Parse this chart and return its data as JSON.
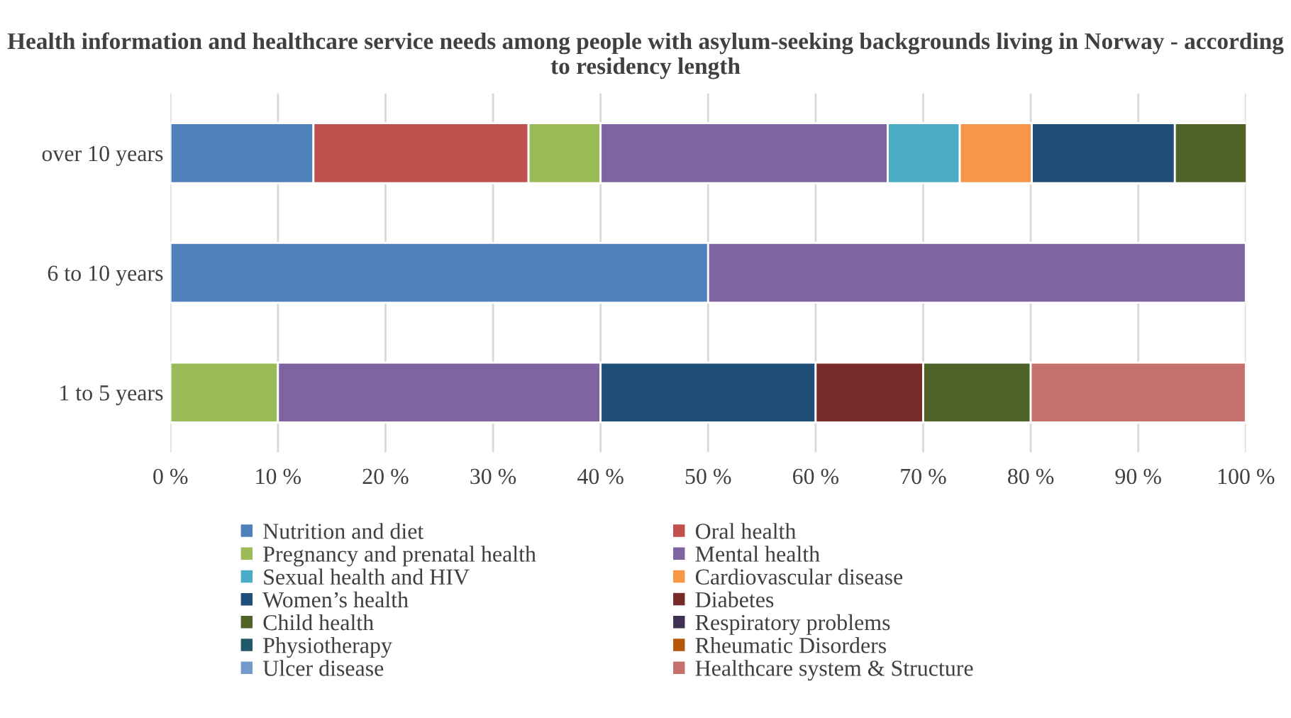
{
  "chart_data": {
    "type": "bar",
    "orientation": "horizontal",
    "stacked": true,
    "title": "Health information and healthcare service needs among people with asylum-seeking backgrounds living in Norway - according to residency length",
    "categories": [
      "over 10 years",
      "6 to 10 years",
      "1 to 5 years"
    ],
    "series": [
      {
        "name": "Nutrition and diet",
        "color": "#4f81bd",
        "values": [
          13.3,
          50,
          null
        ]
      },
      {
        "name": "Oral health",
        "color": "#c0504d",
        "values": [
          20,
          null,
          null
        ]
      },
      {
        "name": "Pregnancy and prenatal health",
        "color": "#9bbb59",
        "values": [
          6.7,
          null,
          10
        ]
      },
      {
        "name": "Mental health",
        "color": "#8064a2",
        "values": [
          26.7,
          50,
          30
        ]
      },
      {
        "name": "Sexual health and HIV",
        "color": "#4bacc6",
        "values": [
          6.7,
          null,
          null
        ]
      },
      {
        "name": "Cardiovascular disease",
        "color": "#f79646",
        "values": [
          6.7,
          null,
          null
        ]
      },
      {
        "name": "Women’s health",
        "color": "#1f4e79",
        "values": [
          13.3,
          null,
          20
        ]
      },
      {
        "name": "Diabetes",
        "color": "#772c2a",
        "values": [
          null,
          null,
          10
        ]
      },
      {
        "name": "Child health",
        "color": "#4f6228",
        "values": [
          6.7,
          null,
          10
        ]
      },
      {
        "name": "Respiratory problems",
        "color": "#3f3151",
        "values": [
          null,
          null,
          null
        ]
      },
      {
        "name": "Physiotherapy",
        "color": "#215968",
        "values": [
          null,
          null,
          null
        ]
      },
      {
        "name": "Rheumatic Disorders",
        "color": "#b65708",
        "values": [
          null,
          null,
          null
        ]
      },
      {
        "name": "Ulcer disease",
        "color": "#729aca",
        "values": [
          null,
          null,
          null
        ]
      },
      {
        "name": "Healthcare system & Structure",
        "color": "#c6706e",
        "values": [
          null,
          null,
          20
        ]
      }
    ],
    "xlim": [
      0,
      100
    ],
    "xticks": [
      {
        "value": 0,
        "label": "0 %"
      },
      {
        "value": 10,
        "label": "10 %"
      },
      {
        "value": 20,
        "label": "20 %"
      },
      {
        "value": 30,
        "label": "30 %"
      },
      {
        "value": 40,
        "label": "40 %"
      },
      {
        "value": 50,
        "label": "50 %"
      },
      {
        "value": 60,
        "label": "60 %"
      },
      {
        "value": 70,
        "label": "70 %"
      },
      {
        "value": 80,
        "label": "80 %"
      },
      {
        "value": 90,
        "label": "90 %"
      },
      {
        "value": 100,
        "label": "100 %"
      }
    ],
    "grid": "x",
    "legend": "bottom"
  }
}
